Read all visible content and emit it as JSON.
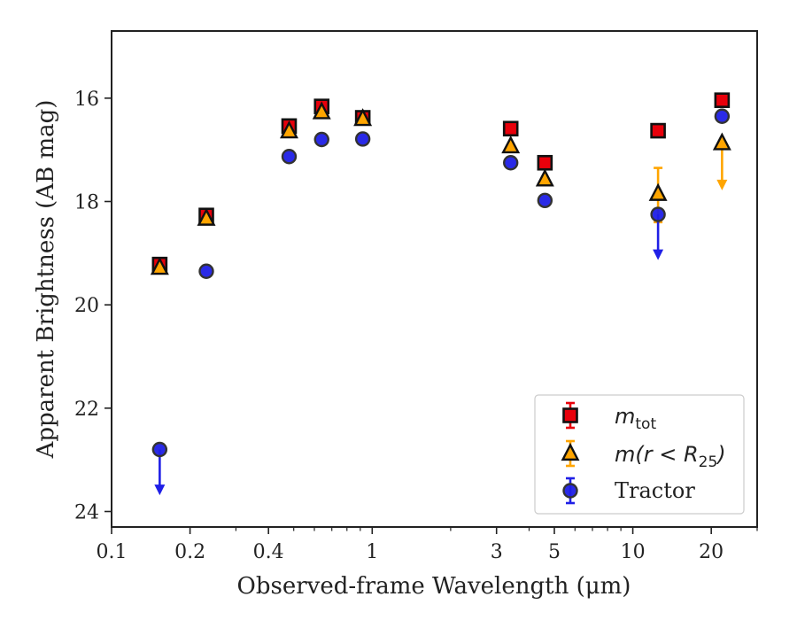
{
  "chart_data": {
    "type": "scatter",
    "xlabel": "Observed-frame Wavelength (μm)",
    "ylabel": "Apparent Brightness (AB mag)",
    "xscale": "log",
    "xlim": [
      0.1,
      30
    ],
    "ylim": [
      24.3,
      14.7
    ],
    "y_inverted": true,
    "xticks": [
      0.1,
      0.2,
      0.4,
      1,
      3,
      5,
      10,
      20
    ],
    "xtick_labels": [
      "0.1",
      "0.2",
      "0.4",
      "1",
      "3",
      "5",
      "10",
      "20"
    ],
    "yticks": [
      16,
      18,
      20,
      22,
      24
    ],
    "ytick_labels": [
      "16",
      "18",
      "20",
      "22",
      "24"
    ],
    "grid": false,
    "legend": {
      "location": "lower-right",
      "entries": [
        {
          "text_main": "m",
          "text_sub": "tot",
          "text_suffix": "",
          "marker": "square",
          "color": "#e8000b"
        },
        {
          "text_main": "m(r < R",
          "text_sub": "25",
          "text_suffix": ")",
          "marker": "triangle",
          "color": "#ffa500"
        },
        {
          "text_main": "Tractor",
          "text_sub": "",
          "text_suffix": "",
          "marker": "circle",
          "color": "#1f1fe6"
        }
      ]
    },
    "series": [
      {
        "name": "m_tot",
        "marker": "square",
        "color": "#e8000b",
        "points": [
          {
            "x": 0.153,
            "y": 19.22
          },
          {
            "x": 0.231,
            "y": 18.27
          },
          {
            "x": 0.48,
            "y": 16.54
          },
          {
            "x": 0.64,
            "y": 16.16
          },
          {
            "x": 0.92,
            "y": 16.38
          },
          {
            "x": 3.4,
            "y": 16.59
          },
          {
            "x": 4.6,
            "y": 17.25
          },
          {
            "x": 12.5,
            "y": 16.63
          },
          {
            "x": 22.0,
            "y": 16.04
          }
        ]
      },
      {
        "name": "m(r<R25)",
        "marker": "triangle",
        "color": "#ffa500",
        "points": [
          {
            "x": 0.153,
            "y": 19.28
          },
          {
            "x": 0.231,
            "y": 18.33
          },
          {
            "x": 0.48,
            "y": 16.64
          },
          {
            "x": 0.64,
            "y": 16.27
          },
          {
            "x": 0.92,
            "y": 16.4
          },
          {
            "x": 3.4,
            "y": 16.93
          },
          {
            "x": 4.6,
            "y": 17.57
          },
          {
            "x": 12.5,
            "y": 17.85,
            "err_low": 17.35,
            "err_high": 18.4
          },
          {
            "x": 22.0,
            "y": 16.87,
            "upper_limit": true,
            "arrow_to": 17.75
          }
        ]
      },
      {
        "name": "Tractor",
        "marker": "circle",
        "color": "#1f1fe6",
        "points": [
          {
            "x": 0.153,
            "y": 22.8,
            "upper_limit": true,
            "arrow_to": 23.65
          },
          {
            "x": 0.231,
            "y": 19.35
          },
          {
            "x": 0.48,
            "y": 17.13
          },
          {
            "x": 0.64,
            "y": 16.8
          },
          {
            "x": 0.92,
            "y": 16.79
          },
          {
            "x": 3.4,
            "y": 17.25
          },
          {
            "x": 4.6,
            "y": 17.98
          },
          {
            "x": 12.5,
            "y": 18.25,
            "upper_limit": true,
            "arrow_to": 19.1
          },
          {
            "x": 22.0,
            "y": 16.35
          }
        ]
      }
    ]
  }
}
